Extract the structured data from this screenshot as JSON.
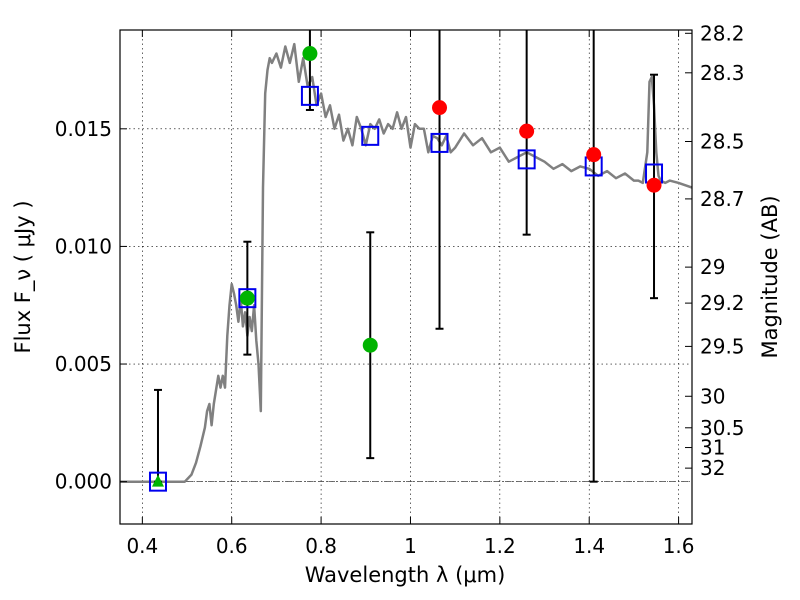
{
  "chart_data": {
    "type": "scatter",
    "xlabel": "Wavelength  λ (μm)",
    "ylabel": "Flux  F_ν  ( μJy )",
    "ylabel_right": "Magnitude (AB)",
    "xlim": [
      0.35,
      1.63
    ],
    "ylim": [
      -0.0018,
      0.0192
    ],
    "x_ticks": [
      {
        "value": 0.4,
        "label": "0.4"
      },
      {
        "value": 0.6,
        "label": "0.6"
      },
      {
        "value": 0.8,
        "label": "0.8"
      },
      {
        "value": 1.0,
        "label": "1"
      },
      {
        "value": 1.2,
        "label": "1.2"
      },
      {
        "value": 1.4,
        "label": "1.4"
      },
      {
        "value": 1.6,
        "label": "1.6"
      }
    ],
    "y_ticks": [
      {
        "value": 0.0,
        "label": "0.000"
      },
      {
        "value": 0.005,
        "label": "0.005"
      },
      {
        "value": 0.01,
        "label": "0.010"
      },
      {
        "value": 0.015,
        "label": "0.015"
      }
    ],
    "mag_ticks": [
      {
        "label": "28.2",
        "flux": 0.01906
      },
      {
        "label": "28.3",
        "flux": 0.01738
      },
      {
        "label": "28.5",
        "flux": 0.01446
      },
      {
        "label": "28.7",
        "flux": 0.01202
      },
      {
        "label": "29",
        "flux": 0.00912
      },
      {
        "label": "29.2",
        "flux": 0.00759
      },
      {
        "label": "29.5",
        "flux": 0.00575
      },
      {
        "label": "30",
        "flux": 0.00363
      },
      {
        "label": "30.5",
        "flux": 0.00229
      },
      {
        "label": "31",
        "flux": 0.00145
      },
      {
        "label": "32",
        "flux": 0.000575
      }
    ],
    "grid": true,
    "model_spectrum": {
      "color": "#808080",
      "x": [
        0.35,
        0.4,
        0.46,
        0.495,
        0.51,
        0.52,
        0.53,
        0.54,
        0.545,
        0.55,
        0.555,
        0.56,
        0.57,
        0.575,
        0.58,
        0.585,
        0.59,
        0.595,
        0.6,
        0.605,
        0.61,
        0.615,
        0.62,
        0.625,
        0.63,
        0.635,
        0.64,
        0.645,
        0.65,
        0.655,
        0.66,
        0.665,
        0.67,
        0.675,
        0.68,
        0.685,
        0.69,
        0.7,
        0.71,
        0.72,
        0.73,
        0.74,
        0.75,
        0.76,
        0.77,
        0.78,
        0.79,
        0.8,
        0.81,
        0.82,
        0.83,
        0.84,
        0.85,
        0.86,
        0.87,
        0.88,
        0.89,
        0.9,
        0.91,
        0.92,
        0.93,
        0.94,
        0.95,
        0.96,
        0.97,
        0.98,
        0.99,
        1.0,
        1.01,
        1.02,
        1.03,
        1.04,
        1.05,
        1.06,
        1.07,
        1.08,
        1.09,
        1.1,
        1.12,
        1.14,
        1.16,
        1.18,
        1.2,
        1.22,
        1.24,
        1.26,
        1.28,
        1.3,
        1.32,
        1.34,
        1.36,
        1.38,
        1.4,
        1.42,
        1.44,
        1.46,
        1.48,
        1.5,
        1.51,
        1.52,
        1.53,
        1.535,
        1.54,
        1.545,
        1.55,
        1.555,
        1.56,
        1.57,
        1.58,
        1.6,
        1.63
      ],
      "y": [
        0.0,
        0.0,
        0.0,
        0.0,
        0.0003,
        0.0008,
        0.0015,
        0.0023,
        0.003,
        0.0033,
        0.0024,
        0.0033,
        0.0045,
        0.004,
        0.0045,
        0.004,
        0.0062,
        0.0075,
        0.0084,
        0.008,
        0.0075,
        0.0068,
        0.0078,
        0.0066,
        0.0072,
        0.0062,
        0.007,
        0.0064,
        0.0075,
        0.006,
        0.005,
        0.003,
        0.0125,
        0.0165,
        0.0175,
        0.018,
        0.0178,
        0.0182,
        0.0176,
        0.0185,
        0.0178,
        0.0186,
        0.017,
        0.018,
        0.0168,
        0.0172,
        0.016,
        0.0165,
        0.0155,
        0.016,
        0.015,
        0.0156,
        0.0145,
        0.015,
        0.0143,
        0.0155,
        0.015,
        0.0143,
        0.0152,
        0.015,
        0.0154,
        0.0148,
        0.0152,
        0.015,
        0.0157,
        0.015,
        0.0155,
        0.0142,
        0.0152,
        0.015,
        0.015,
        0.014,
        0.0147,
        0.0146,
        0.0143,
        0.0147,
        0.014,
        0.0142,
        0.0148,
        0.0143,
        0.0146,
        0.014,
        0.0142,
        0.0136,
        0.0138,
        0.014,
        0.0138,
        0.0136,
        0.0133,
        0.0135,
        0.0132,
        0.0134,
        0.0133,
        0.013,
        0.0132,
        0.0129,
        0.0131,
        0.0128,
        0.0128,
        0.0127,
        0.014,
        0.017,
        0.0172,
        0.016,
        0.014,
        0.013,
        0.0128,
        0.0127,
        0.0128,
        0.0127,
        0.0125
      ]
    },
    "model_photometry": {
      "marker": "open-square",
      "color": "#0000ee",
      "points": [
        {
          "x": 0.435,
          "y": 0.0
        },
        {
          "x": 0.635,
          "y": 0.0078
        },
        {
          "x": 0.775,
          "y": 0.0164
        },
        {
          "x": 0.91,
          "y": 0.0147
        },
        {
          "x": 1.065,
          "y": 0.0144
        },
        {
          "x": 1.26,
          "y": 0.0137
        },
        {
          "x": 1.41,
          "y": 0.0134
        },
        {
          "x": 1.545,
          "y": 0.0131
        }
      ]
    },
    "observed_green": {
      "color": "#00b400",
      "points": [
        {
          "x": 0.435,
          "y": 0.0,
          "marker": "triangle",
          "err_low": 0.0,
          "err_high": 0.0039
        },
        {
          "x": 0.635,
          "y": 0.0078,
          "marker": "circle",
          "err_low": 0.0054,
          "err_high": 0.0102
        },
        {
          "x": 0.775,
          "y": 0.0182,
          "marker": "circle",
          "err_low": 0.0158,
          "err_high": 0.0192
        },
        {
          "x": 0.91,
          "y": 0.0058,
          "marker": "circle",
          "err_low": 0.001,
          "err_high": 0.0106
        }
      ]
    },
    "observed_red": {
      "color": "#ff0000",
      "points": [
        {
          "x": 1.065,
          "y": 0.0159,
          "err_low": 0.0065,
          "err_high": 0.0192
        },
        {
          "x": 1.26,
          "y": 0.0149,
          "err_low": 0.0105,
          "err_high": 0.0192
        },
        {
          "x": 1.41,
          "y": 0.0139,
          "err_low": 0.0,
          "err_high": 0.0192
        },
        {
          "x": 1.545,
          "y": 0.0126,
          "err_low": 0.0078,
          "err_high": 0.0173
        }
      ]
    }
  }
}
